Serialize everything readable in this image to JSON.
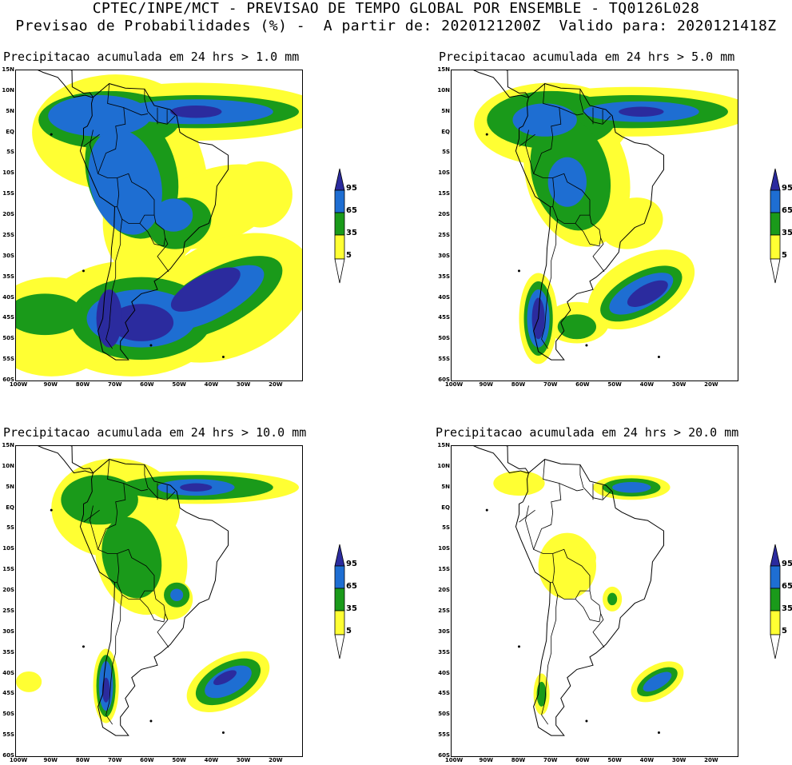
{
  "header": {
    "line1": "CPTEC/INPE/MCT - PREVISAO DE TEMPO GLOBAL POR ENSEMBLE - TQ0126L028",
    "line2": "Previsao de Probabilidades (%) -  A partir de: 2020121200Z  Valido para: 2020121418Z"
  },
  "axes": {
    "lat_labels": [
      "15N",
      "10N",
      "5N",
      "EQ",
      "5S",
      "10S",
      "15S",
      "20S",
      "25S",
      "30S",
      "35S",
      "40S",
      "45S",
      "50S",
      "55S",
      "60S"
    ],
    "lon_labels": [
      "100W",
      "90W",
      "80W",
      "70W",
      "60W",
      "50W",
      "40W",
      "30W",
      "20W"
    ]
  },
  "colorbar": {
    "levels": [
      "95",
      "65",
      "35",
      "5"
    ],
    "colors": {
      "p5": "#ffff33",
      "p35": "#1a9a1a",
      "p65": "#1e6ed2",
      "p95": "#2b2b9e"
    }
  },
  "panels": [
    {
      "title": "Precipitacao acumulada em 24 hrs > 1.0 mm"
    },
    {
      "title": "Precipitacao acumulada em 24 hrs > 5.0 mm"
    },
    {
      "title": "Precipitacao acumulada em 24 hrs > 10.0 mm"
    },
    {
      "title": "Precipitacao acumulada em 24 hrs > 20.0 mm"
    }
  ]
}
